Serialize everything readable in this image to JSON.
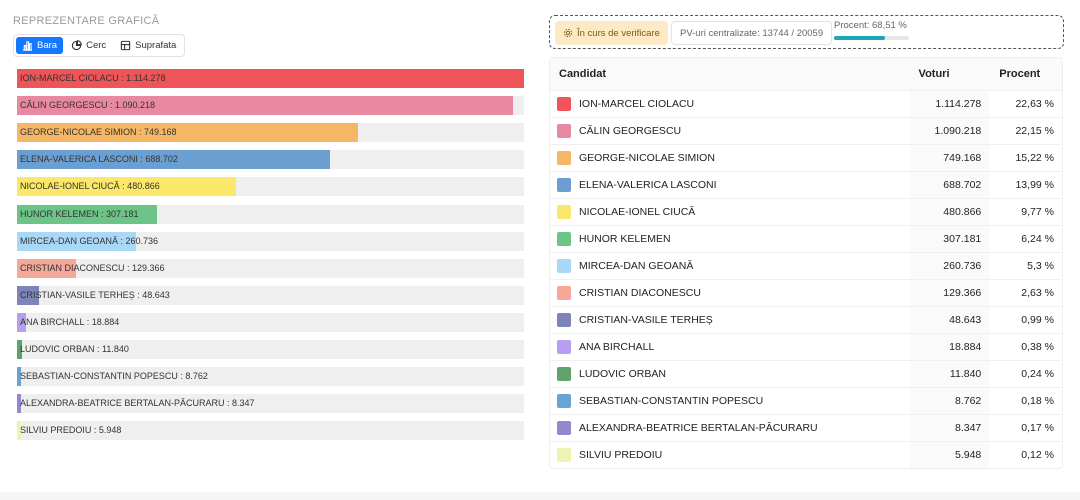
{
  "section_title": "REPREZENTARE GRAFICĂ",
  "view_toggle": {
    "bar_label": "Bara",
    "pie_label": "Cerc",
    "area_label": "Suprafata",
    "selected": "Bara"
  },
  "status": {
    "verification_label": "În curs de verificare",
    "pv_label": "PV-uri centralizate: 13744 / 20059",
    "percent_label": "Procent: 68,51 %",
    "percent_value": 68.51
  },
  "table": {
    "headers": {
      "candidate": "Candidat",
      "votes": "Voturi",
      "percent": "Procent"
    }
  },
  "chart_data": {
    "type": "bar",
    "orientation": "horizontal",
    "xlim": [
      0,
      1114278
    ],
    "rows": [
      {
        "name": "ION-MARCEL CIOLACU",
        "votes": 1114278,
        "votes_text": "1.114.278",
        "percent_text": "22,63 %",
        "color": "#ee5458"
      },
      {
        "name": "CĂLIN GEORGESCU",
        "votes": 1090218,
        "votes_text": "1.090.218",
        "percent_text": "22,15 %",
        "color": "#e989a1"
      },
      {
        "name": "GEORGE-NICOLAE SIMION",
        "votes": 749168,
        "votes_text": "749.168",
        "percent_text": "15,22 %",
        "color": "#f5b766"
      },
      {
        "name": "ELENA-VALERICA LASCONI",
        "votes": 688702,
        "votes_text": "688.702",
        "percent_text": "13,99 %",
        "color": "#6c9fd1"
      },
      {
        "name": "NICOLAE-IONEL CIUCĂ",
        "votes": 480866,
        "votes_text": "480.866",
        "percent_text": "9,77 %",
        "color": "#fbe76a"
      },
      {
        "name": "HUNOR KELEMEN",
        "votes": 307181,
        "votes_text": "307.181",
        "percent_text": "6,24 %",
        "color": "#6cc487"
      },
      {
        "name": "MIRCEA-DAN GEOANĂ",
        "votes": 260736,
        "votes_text": "260.736",
        "percent_text": "5,3 %",
        "color": "#a9d8f7"
      },
      {
        "name": "CRISTIAN DIACONESCU",
        "votes": 129366,
        "votes_text": "129.366",
        "percent_text": "2,63 %",
        "color": "#f4a898"
      },
      {
        "name": "CRISTIAN-VASILE TERHEȘ",
        "votes": 48643,
        "votes_text": "48.643",
        "percent_text": "0,99 %",
        "color": "#7d85b8"
      },
      {
        "name": "ANA BIRCHALL",
        "votes": 18884,
        "votes_text": "18.884",
        "percent_text": "0,38 %",
        "color": "#b79ef0"
      },
      {
        "name": "LUDOVIC ORBAN",
        "votes": 11840,
        "votes_text": "11.840",
        "percent_text": "0,24 %",
        "color": "#5ea36c"
      },
      {
        "name": "SEBASTIAN-CONSTANTIN POPESCU",
        "votes": 8762,
        "votes_text": "8.762",
        "percent_text": "0,18 %",
        "color": "#6aa4d4"
      },
      {
        "name": "ALEXANDRA-BEATRICE BERTALAN-PĂCURARU",
        "votes": 8347,
        "votes_text": "8.347",
        "percent_text": "0,17 %",
        "color": "#9687d1"
      },
      {
        "name": "SILVIU PREDOIU",
        "votes": 5948,
        "votes_text": "5.948",
        "percent_text": "0,12 %",
        "color": "#eef3b4"
      }
    ]
  }
}
